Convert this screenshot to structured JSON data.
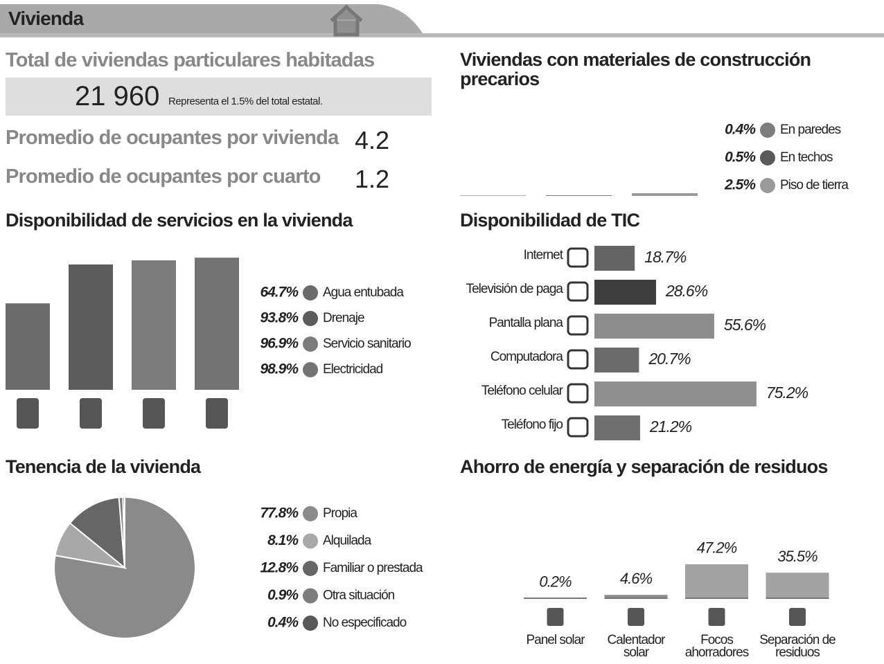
{
  "header": {
    "title": "Vivienda"
  },
  "stats": {
    "total_label": "Total de viviendas particulares habitadas",
    "total_value": "21 960",
    "total_note": "Representa el 1.5% del total estatal.",
    "per_house_label": "Promedio de ocupantes por vivienda",
    "per_house_value": 4.2,
    "per_room_label": "Promedio de ocupantes por cuarto",
    "per_room_value": 1.2
  },
  "chart_data": [
    {
      "type": "bar",
      "title": "Disponibilidad de servicios en la vivienda",
      "categories": [
        "Agua entubada",
        "Drenaje",
        "Servicio sanitario",
        "Electricidad"
      ],
      "values": [
        64.7,
        93.8,
        96.9,
        98.9
      ],
      "value_labels": [
        "64.7%",
        "93.8%",
        "96.9%",
        "98.9%"
      ],
      "colors": [
        "#6b6b6b",
        "#5c5c5c",
        "#7c7c7c",
        "#737373"
      ],
      "ylim": [
        0,
        100
      ],
      "legend": "right"
    },
    {
      "type": "bar",
      "title": "Viviendas con materiales de construcción precarios",
      "categories": [
        "En paredes",
        "En techos",
        "Piso de tierra"
      ],
      "values": [
        0.4,
        0.5,
        2.5
      ],
      "value_labels": [
        "0.4%",
        "0.5%",
        "2.5%"
      ],
      "colors": [
        "#7d7d7d",
        "#5a5a5a",
        "#9a9a9a"
      ],
      "ylim": [
        0,
        100
      ],
      "legend": "top-right"
    },
    {
      "type": "hbar",
      "title": "Disponibilidad de TIC",
      "categories": [
        "Internet",
        "Televisión de paga",
        "Pantalla plana",
        "Computadora",
        "Teléfono celular",
        "Teléfono fijo"
      ],
      "values": [
        18.7,
        28.6,
        55.6,
        20.7,
        75.2,
        21.2
      ],
      "value_labels": [
        "18.7%",
        "28.6%",
        "55.6%",
        "20.7%",
        "75.2%",
        "21.2%"
      ],
      "colors": [
        "#656565",
        "#3e3e3e",
        "#8d8d8d",
        "#6a6a6a",
        "#8f8f8f",
        "#6f6f6f"
      ],
      "xlim": [
        0,
        100
      ]
    },
    {
      "type": "pie",
      "title": "Tenencia de la vivienda",
      "categories": [
        "Propia",
        "Alquilada",
        "Familiar o prestada",
        "Otra situación",
        "No especificado"
      ],
      "values": [
        77.8,
        8.1,
        12.8,
        0.9,
        0.4
      ],
      "value_labels": [
        "77.8%",
        "8.1%",
        "12.8%",
        "0.9%",
        "0.4%"
      ],
      "colors": [
        "#8a8a8a",
        "#a8a8a8",
        "#666666",
        "#7e7e7e",
        "#595959"
      ],
      "legend": "right"
    },
    {
      "type": "bar",
      "title": "Ahorro de energía y separación de residuos",
      "categories": [
        "Panel solar",
        "Calentador solar",
        "Focos ahorradores",
        "Separación de residuos"
      ],
      "values": [
        0.2,
        4.6,
        47.2,
        35.5
      ],
      "value_labels": [
        "0.2%",
        "4.6%",
        "47.2%",
        "35.5%"
      ],
      "colors": [
        "#8c8c8c",
        "#8c8c8c",
        "#a3a3a3",
        "#a3a3a3"
      ],
      "ylim": [
        0,
        100
      ]
    }
  ]
}
